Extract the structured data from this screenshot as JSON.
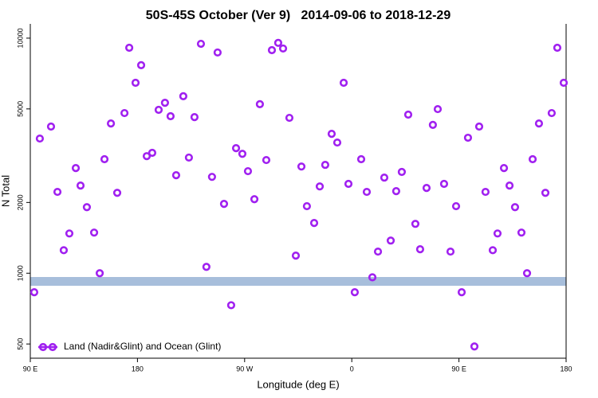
{
  "chart_data": {
    "type": "scatter",
    "title": "50S-45S October (Ver 9)   2014-09-06 to 2018-12-29",
    "x_label": "Longitude (deg E)",
    "y_label": "N Total",
    "log_y": true,
    "legend_position": "lower left",
    "xlim": [
      90,
      540
    ],
    "ylim": [
      435,
      11500
    ],
    "xticks": [
      {
        "value": 90,
        "label": "90 E"
      },
      180,
      {
        "value": 270,
        "label": "90 W"
      },
      {
        "value": 360,
        "label": "0"
      },
      {
        "value": 450,
        "label": "90 E"
      },
      {
        "value": 540,
        "label": "180"
      }
    ],
    "yticks": [
      500,
      1000,
      2000,
      5000,
      10000
    ],
    "series": [
      {
        "name": "Land (Nadir&Glint) and Ocean (Glint)",
        "color": "#a020f0",
        "x": [
          93.3,
          98.0,
          107.4,
          112.8,
          118.1,
          122.8,
          128.2,
          132.2,
          137.5,
          143.6,
          148.3,
          152.3,
          157.7,
          163.0,
          169.1,
          173.1,
          178.4,
          183.1,
          187.8,
          192.4,
          197.8,
          203.1,
          207.8,
          212.5,
          218.5,
          223.2,
          227.9,
          233.3,
          237.9,
          242.6,
          247.3,
          252.7,
          258.7,
          262.8,
          268.1,
          272.8,
          278.2,
          282.8,
          288.2,
          292.9,
          298.2,
          302.3,
          307.6,
          313.0,
          317.7,
          322.3,
          328.4,
          333.1,
          337.7,
          343.1,
          347.8,
          353.2,
          357.2,
          362.5,
          367.9,
          372.6,
          377.3,
          382.0,
          387.3,
          392.7,
          397.3,
          402.0,
          407.4,
          413.4,
          417.4,
          422.8,
          428.1,
          432.2,
          437.5,
          442.9,
          447.6,
          452.3,
          457.6,
          463.0,
          467.0,
          472.3,
          478.4,
          482.4,
          487.8,
          492.5,
          497.1,
          502.5,
          507.2,
          511.9,
          517.2,
          522.6,
          527.9,
          532.6,
          538.0
        ],
        "values": [
          830,
          3740,
          4207,
          2218,
          1253,
          1476,
          2801,
          2360,
          1910,
          1489,
          1000,
          3055,
          4335,
          2198,
          4800,
          9100,
          6457,
          7674,
          3148,
          3251,
          4955,
          5309,
          4656,
          2612,
          5662,
          3105,
          4613,
          9460,
          1064,
          2570,
          8690,
          1972,
          731,
          3404,
          3221,
          2717,
          2065,
          5236,
          3030,
          8892,
          9550,
          9036,
          4581,
          1188,
          2844,
          1928,
          1636,
          2340,
          2891,
          3917,
          3597,
          6457,
          2399,
          830,
          3055,
          2218,
          961,
          1236,
          2552,
          1377,
          2234,
          2697,
          4729,
          1622,
          1265,
          2305,
          4276,
          4990,
          2399,
          1236,
          1928,
          830,
          3770,
          488,
          4207,
          2218,
          1253,
          1476,
          2801,
          2360,
          1910,
          1489,
          1000,
          3055,
          4335,
          2198,
          4800,
          9100,
          6457
        ]
      }
    ]
  }
}
